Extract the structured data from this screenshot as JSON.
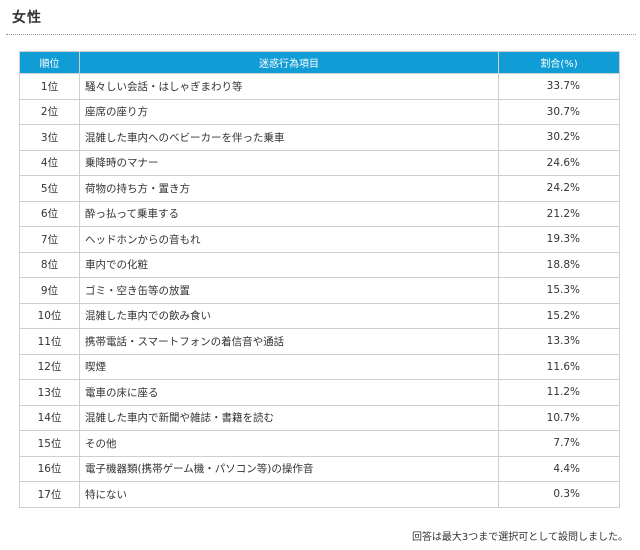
{
  "page": {
    "heading": "女性",
    "note": "回答は最大3つまで選択可として設問しました。"
  },
  "table": {
    "headers": {
      "rank": "順位",
      "item": "迷惑行為項目",
      "pct": "割合(%)"
    },
    "rows": [
      {
        "rank": "1位",
        "item": "騒々しい会話・はしゃぎまわり等",
        "pct": "33.7%"
      },
      {
        "rank": "2位",
        "item": "座席の座り方",
        "pct": "30.7%"
      },
      {
        "rank": "3位",
        "item": "混雑した車内へのベビーカーを伴った乗車",
        "pct": "30.2%"
      },
      {
        "rank": "4位",
        "item": "乗降時のマナー",
        "pct": "24.6%"
      },
      {
        "rank": "5位",
        "item": "荷物の持ち方・置き方",
        "pct": "24.2%"
      },
      {
        "rank": "6位",
        "item": "酔っ払って乗車する",
        "pct": "21.2%"
      },
      {
        "rank": "7位",
        "item": "ヘッドホンからの音もれ",
        "pct": "19.3%"
      },
      {
        "rank": "8位",
        "item": "車内での化粧",
        "pct": "18.8%"
      },
      {
        "rank": "9位",
        "item": "ゴミ・空き缶等の放置",
        "pct": "15.3%"
      },
      {
        "rank": "10位",
        "item": "混雑した車内での飲み食い",
        "pct": "15.2%"
      },
      {
        "rank": "11位",
        "item": "携帯電話・スマートフォンの着信音や通話",
        "pct": "13.3%"
      },
      {
        "rank": "12位",
        "item": "喫煙",
        "pct": "11.6%"
      },
      {
        "rank": "13位",
        "item": "電車の床に座る",
        "pct": "11.2%"
      },
      {
        "rank": "14位",
        "item": "混雑した車内で新聞や雑誌・書籍を読む",
        "pct": "10.7%"
      },
      {
        "rank": "15位",
        "item": "その他",
        "pct": "7.7%"
      },
      {
        "rank": "16位",
        "item": "電子機器類(携帯ゲーム機・パソコン等)の操作音",
        "pct": "4.4%"
      },
      {
        "rank": "17位",
        "item": "特にない",
        "pct": "0.3%"
      }
    ]
  },
  "colors": {
    "header_bg": "#109cd5",
    "header_text": "#ffffff",
    "border": "#cfcfcf"
  }
}
